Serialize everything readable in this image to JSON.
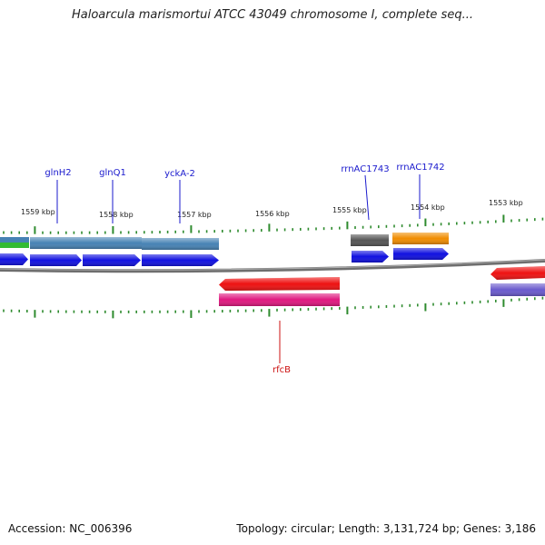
{
  "title": "Haloarcula marismortui ATCC 43049 chromosome I, complete seq...",
  "footer": {
    "accession": "Accession: NC_006396",
    "summary": "Topology: circular; Length: 3,131,724 bp; Genes: 3,186"
  },
  "colors": {
    "backbone": "#7a7a7a",
    "tick": "#2e8b2e",
    "label_forward": "#1a1acd",
    "label_reverse": "#cc1111",
    "blue_feature": "#1010e0",
    "steel_feature": "#4682b4",
    "red_feature": "#ee1111",
    "pink_feature": "#e0187f",
    "gray_feature": "#555555",
    "orange_feature": "#f08c00",
    "green_feature": "#33bb33",
    "purple_feature": "#6a5acd"
  },
  "kbp_labels": [
    "1559 kbp",
    "1558 kbp",
    "1557 kbp",
    "1556 kbp",
    "1555 kbp",
    "1554 kbp",
    "1553 kbp"
  ],
  "gene_labels": {
    "glnH2": "glnH2",
    "glnQ1": "glnQ1",
    "yckA2": "yckA-2",
    "rrnAC1743": "rrnAC1743",
    "rrnAC1742": "rrnAC1742",
    "rfcB": "rfcB"
  }
}
